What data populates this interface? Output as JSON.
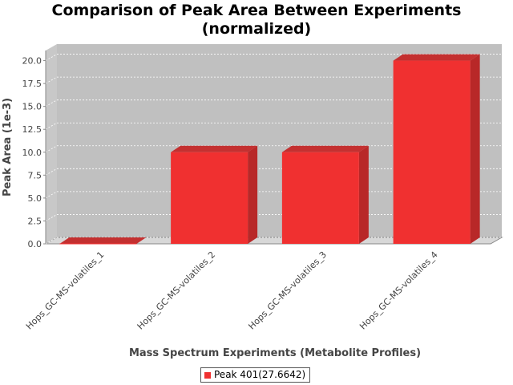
{
  "chart_data": {
    "type": "bar",
    "title": "Comparison of Peak Area Between Experiments\n(normalized)",
    "xlabel": "Mass Spectrum Experiments (Metabolite Profiles)",
    "ylabel": "Peak Area (1e-3)",
    "categories": [
      "Hops_GC-MS-volatiles_1",
      "Hops_GC-MS-volatiles_2",
      "Hops_GC-MS-volatiles_3",
      "Hops_GC-MS-volatiles_4"
    ],
    "series": [
      {
        "name": "Peak 401(27.6642)",
        "values": [
          0.0,
          10.0,
          10.0,
          20.0
        ]
      }
    ],
    "ylim": [
      0,
      21.1
    ],
    "yticks": [
      "0.0",
      "2.5",
      "5.0",
      "7.5",
      "10.0",
      "12.5",
      "15.0",
      "17.5",
      "20.0"
    ],
    "grid": true,
    "legend_position": "bottom",
    "bar_color": "#f03030"
  }
}
